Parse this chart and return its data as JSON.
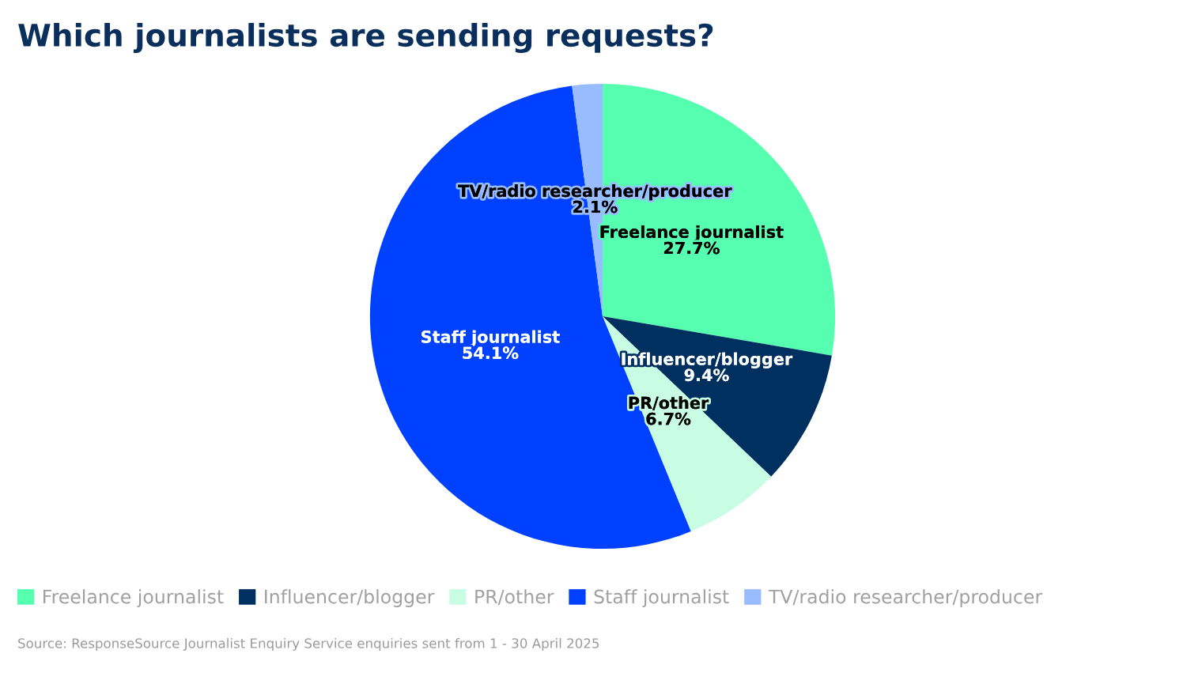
{
  "chart_data": {
    "type": "pie",
    "title": "Which journalists are sending requests?",
    "categories": [
      "Freelance journalist",
      "Influencer/blogger",
      "PR/other",
      "Staff journalist",
      "TV/radio researcher/producer"
    ],
    "values": [
      27.7,
      9.4,
      6.7,
      54.1,
      2.1
    ],
    "colors": [
      "#55ffaf",
      "#00305f",
      "#c8fde4",
      "#0040ff",
      "#99bbff"
    ],
    "value_labels": [
      "27.7%",
      "9.4%",
      "6.7%",
      "54.1%",
      "2.1%"
    ],
    "legend": "bottom",
    "annotations": [
      "Source: ResponseSource Journalist Enquiry Service enquiries sent from 1 - 30 April 2025"
    ]
  }
}
